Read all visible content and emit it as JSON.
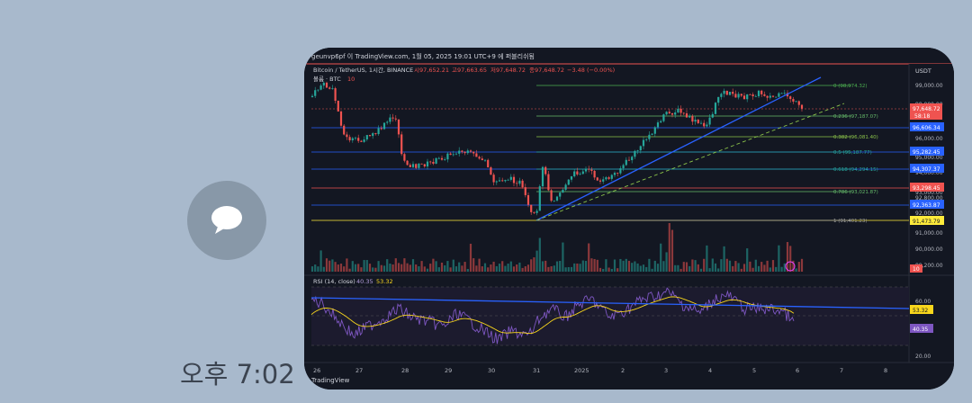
{
  "chat": {
    "timestamp": "오후 7:02",
    "avatar_icon": "chat-bubble-icon"
  },
  "chart_header": {
    "author_line": "geunvp6pf 이 TradingView.com, 1월 05, 2025 19:01 UTC+9 에 퍼블리쉬됨",
    "symbol_line": "Bitcoin / TetherUS, 1시간, BINANCE",
    "open": "시97,652.21",
    "high": "고97,663.65",
    "low": "저97,648.72",
    "close": "종97,648.72",
    "change": "−3.48 (−0.00%)",
    "volume_label": "볼륨 · BTC",
    "volume_value": "10"
  },
  "price_axis": {
    "currency": "USDT",
    "ticks": [
      "99,000.00",
      "98,000.00",
      "96,000.00",
      "95,000.00",
      "94,000.00",
      "93,000.00",
      "92,800.00",
      "92,000.00",
      "91,000.00",
      "90,000.00",
      "89,200.00"
    ],
    "current_price": "97,648.72",
    "countdown": "58:18",
    "tag_blue_1": "96,606.34",
    "tag_blue_2": "95,282.45",
    "tag_blue_3": "94,307.37",
    "tag_red_1": "93,298.45",
    "tag_blue_4": "92,363.87",
    "tag_yellow": "91,473.79",
    "volume_tag": "10"
  },
  "fib_levels": [
    {
      "label": "0 (98,974.32)",
      "color": "#4caf50"
    },
    {
      "label": "0.236 (97,187.07)",
      "color": "#66bb6a"
    },
    {
      "label": "0.382 (96,081.40)",
      "color": "#8bc34a"
    },
    {
      "label": "0.5 (95,187.77)",
      "color": "#26a69a"
    },
    {
      "label": "0.618 (94,294.15)",
      "color": "#26a69a"
    },
    {
      "label": "0.786 (93,021.87)",
      "color": "#66bb6a"
    },
    {
      "label": "1 (91,401.23)",
      "color": "#9e9e9e"
    }
  ],
  "rsi": {
    "label": "RSI (14, close)",
    "value1": "40.35",
    "value2": "53.32",
    "ticks": [
      "60.00",
      "20.00"
    ],
    "tag_ma": "53.32",
    "tag_rsi": "40.35"
  },
  "time_axis": {
    "labels": [
      "26",
      "27",
      "28",
      "29",
      "30",
      "31",
      "2025",
      "2",
      "3",
      "4",
      "5",
      "6",
      "7",
      "8"
    ]
  },
  "footer": {
    "brand": "TradingView"
  },
  "colors": {
    "background": "#131722",
    "up": "#26a69a",
    "down": "#ef5350",
    "trendline": "#2962ff",
    "rsi_line": "#7e57c2",
    "rsi_ma": "#f9d71c"
  },
  "chart_data": {
    "type": "candlestick",
    "x_range": [
      "26",
      "8"
    ],
    "y_range": [
      89200,
      99600
    ],
    "series": [
      {
        "name": "Bitcoin / TetherUS",
        "values": []
      }
    ]
  }
}
